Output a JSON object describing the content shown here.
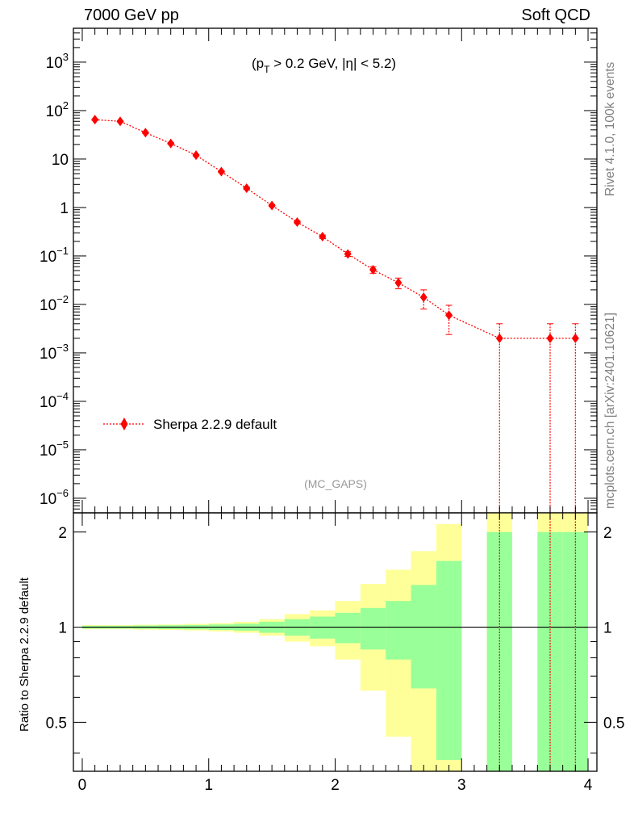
{
  "header": {
    "left": "7000 GeV pp",
    "right": "Soft QCD"
  },
  "side_texts": {
    "rivet": "Rivet 4.1.0,  100k events",
    "mcplots": "mcplots.cern.ch [arXiv:2401.10621]"
  },
  "chart_data": [
    {
      "type": "scatter",
      "annotation": {
        "cut_pt_prefix": "(p",
        "cut_pt_sub": "T",
        "cut_rest": " > 0.2 GeV, |η| < 5.2)"
      },
      "watermark": "(MC_GAPS)",
      "yscale": "log",
      "ylim": [
        5e-07,
        5000
      ],
      "xlim": [
        -0.07,
        4.07
      ],
      "legend": {
        "placement": "bottom-left",
        "label": "Sherpa 2.2.9 default"
      },
      "series": [
        {
          "name": "Sherpa 2.2.9 default",
          "color": "#ff0000",
          "linestyle": "dotted",
          "marker": "diamond",
          "x": [
            0.1,
            0.3,
            0.5,
            0.7,
            0.9,
            1.1,
            1.3,
            1.5,
            1.7,
            1.9,
            2.1,
            2.3,
            2.5,
            2.7,
            2.9,
            3.3,
            3.7,
            3.9
          ],
          "y": [
            65,
            60,
            35,
            21,
            12,
            5.5,
            2.5,
            1.1,
            0.5,
            0.25,
            0.11,
            0.052,
            0.028,
            0.014,
            0.006,
            0.002,
            0.002,
            0.002
          ],
          "yerr_low": [
            2,
            2,
            1.2,
            0.8,
            0.5,
            0.25,
            0.12,
            0.06,
            0.035,
            0.02,
            0.012,
            0.008,
            0.007,
            0.006,
            0.0036,
            0.002,
            0.002,
            0.002
          ],
          "yerr_high": [
            2,
            2,
            1.2,
            0.8,
            0.5,
            0.25,
            0.12,
            0.06,
            0.035,
            0.02,
            0.012,
            0.008,
            0.007,
            0.006,
            0.0036,
            0.002,
            0.002,
            0.002
          ]
        }
      ],
      "yticks": [
        {
          "value": 1e-06,
          "base": "10",
          "exp": "−6"
        },
        {
          "value": 1e-05,
          "base": "10",
          "exp": "−5"
        },
        {
          "value": 0.0001,
          "base": "10",
          "exp": "−4"
        },
        {
          "value": 0.001,
          "base": "10",
          "exp": "−3"
        },
        {
          "value": 0.01,
          "base": "10",
          "exp": "−2"
        },
        {
          "value": 0.1,
          "base": "10",
          "exp": "−1"
        },
        {
          "value": 1,
          "base": "1",
          "exp": ""
        },
        {
          "value": 10,
          "base": "10",
          "exp": ""
        },
        {
          "value": 100,
          "base": "10",
          "exp": "2"
        },
        {
          "value": 1000,
          "base": "10",
          "exp": "3"
        }
      ]
    },
    {
      "type": "area",
      "ylabel": "Ratio to Sherpa 2.2.9 default",
      "ylim": [
        0.35,
        2.3
      ],
      "xlim": [
        -0.07,
        4.07
      ],
      "reference_line": 1,
      "band_colors": {
        "inner": "#99ff99",
        "outer": "#ffff99"
      },
      "yticks": [
        0.5,
        1,
        2
      ],
      "xticks": [
        0,
        1,
        2,
        3,
        4
      ],
      "bins": [
        {
          "lo": 0.0,
          "hi": 0.2,
          "in_lo": 0.99,
          "in_hi": 1.01,
          "out_lo": 0.985,
          "out_hi": 1.015
        },
        {
          "lo": 0.2,
          "hi": 0.4,
          "in_lo": 0.99,
          "in_hi": 1.01,
          "out_lo": 0.985,
          "out_hi": 1.015
        },
        {
          "lo": 0.4,
          "hi": 0.6,
          "in_lo": 0.988,
          "in_hi": 1.012,
          "out_lo": 0.982,
          "out_hi": 1.018
        },
        {
          "lo": 0.6,
          "hi": 0.8,
          "in_lo": 0.986,
          "in_hi": 1.014,
          "out_lo": 0.98,
          "out_hi": 1.02
        },
        {
          "lo": 0.8,
          "hi": 1.0,
          "in_lo": 0.984,
          "in_hi": 1.016,
          "out_lo": 0.976,
          "out_hi": 1.024
        },
        {
          "lo": 1.0,
          "hi": 1.2,
          "in_lo": 0.98,
          "in_hi": 1.02,
          "out_lo": 0.97,
          "out_hi": 1.03
        },
        {
          "lo": 1.2,
          "hi": 1.4,
          "in_lo": 0.975,
          "in_hi": 1.025,
          "out_lo": 0.96,
          "out_hi": 1.04
        },
        {
          "lo": 1.4,
          "hi": 1.6,
          "in_lo": 0.96,
          "in_hi": 1.04,
          "out_lo": 0.94,
          "out_hi": 1.06
        },
        {
          "lo": 1.6,
          "hi": 1.8,
          "in_lo": 0.94,
          "in_hi": 1.06,
          "out_lo": 0.9,
          "out_hi": 1.1
        },
        {
          "lo": 1.8,
          "hi": 2.0,
          "in_lo": 0.92,
          "in_hi": 1.08,
          "out_lo": 0.87,
          "out_hi": 1.13
        },
        {
          "lo": 2.0,
          "hi": 2.2,
          "in_lo": 0.89,
          "in_hi": 1.11,
          "out_lo": 0.79,
          "out_hi": 1.21
        },
        {
          "lo": 2.2,
          "hi": 2.4,
          "in_lo": 0.85,
          "in_hi": 1.15,
          "out_lo": 0.63,
          "out_hi": 1.37
        },
        {
          "lo": 2.4,
          "hi": 2.6,
          "in_lo": 0.79,
          "in_hi": 1.21,
          "out_lo": 0.45,
          "out_hi": 1.52
        },
        {
          "lo": 2.6,
          "hi": 2.8,
          "in_lo": 0.64,
          "in_hi": 1.36,
          "out_lo": 0.35,
          "out_hi": 1.74
        },
        {
          "lo": 2.8,
          "hi": 3.0,
          "in_lo": 0.38,
          "in_hi": 1.62,
          "out_lo": 0.35,
          "out_hi": 2.12
        },
        {
          "lo": 3.2,
          "hi": 3.4,
          "in_lo": 0.35,
          "in_hi": 2.0,
          "out_lo": 0.35,
          "out_hi": 2.3
        },
        {
          "lo": 3.6,
          "hi": 3.8,
          "in_lo": 0.35,
          "in_hi": 2.0,
          "out_lo": 0.35,
          "out_hi": 2.3
        },
        {
          "lo": 3.8,
          "hi": 4.0,
          "in_lo": 0.35,
          "in_hi": 2.0,
          "out_lo": 0.35,
          "out_hi": 2.3
        }
      ]
    }
  ]
}
